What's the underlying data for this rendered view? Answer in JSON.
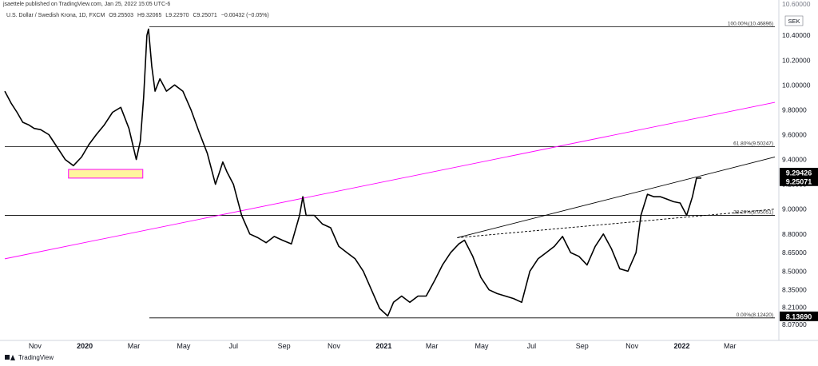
{
  "header": {
    "caption": "jsaettele published on TradingView.com, Jan 25, 2022 15:05 UTC-6",
    "symbol": "U.S. Dollar / Swedish Krona, 1D, FXCM",
    "ohlc": {
      "open": "O9.25503",
      "high": "H9.32065",
      "low": "L9.22970",
      "close": "C9.25071",
      "change": "−0.00432 (−0.05%)"
    }
  },
  "footer": {
    "logo_text": "TradingView",
    "logo_icon": "tradingview-logo-icon"
  },
  "colors": {
    "price": "#000000",
    "trendline": "#000000",
    "magenta_line": "#ff00ff",
    "box_fill": "#fff59d",
    "box_border": "#ff00ff",
    "fib_line": "#000000",
    "axis_text": "#131722"
  },
  "chart_data": {
    "type": "line",
    "title": "U.S. Dollar / Swedish Krona, 1D, FXCM",
    "currency": "SEK",
    "x_labels": [
      "Nov",
      "2020",
      "Mar",
      "May",
      "Jul",
      "Sep",
      "Nov",
      "2021",
      "Mar",
      "May",
      "Jul",
      "Sep",
      "Nov",
      "2022",
      "Mar"
    ],
    "bold_x_labels": [
      "2020",
      "2021",
      "2022"
    ],
    "x_dates": [
      "2019-11-01",
      "2020-01-01",
      "2020-03-01",
      "2020-05-01",
      "2020-07-01",
      "2020-09-01",
      "2020-11-01",
      "2021-01-01",
      "2021-03-01",
      "2021-05-01",
      "2021-07-01",
      "2021-09-01",
      "2021-11-01",
      "2022-01-01",
      "2022-03-01"
    ],
    "y_ticks": [
      "10.40000",
      "10.20000",
      "10.00000",
      "9.80000",
      "9.60000",
      "9.40000",
      "9.20000",
      "9.00000",
      "8.80000",
      "8.65000",
      "8.50000",
      "8.35000",
      "8.21000",
      "8.07000"
    ],
    "y_tick_values": [
      10.4,
      10.2,
      10.0,
      9.8,
      9.6,
      9.4,
      9.2,
      9.0,
      8.8,
      8.65,
      8.5,
      8.35,
      8.21,
      8.07
    ],
    "y_top_partial": "10.60000",
    "ylim": [
      8.02,
      10.62
    ],
    "xlim": [
      "2019-09-25",
      "2022-04-25"
    ],
    "price_labels": [
      {
        "value": 9.29426,
        "text": "9.29426"
      },
      {
        "value": 9.25071,
        "text": "9.25071"
      },
      {
        "value": 8.1369,
        "text": "8.13690"
      }
    ],
    "fib_levels": [
      {
        "text": "100.00%(10.46896)",
        "value": 10.46896
      },
      {
        "text": "61.80%(9.50247)",
        "value": 9.50247
      },
      {
        "text": "38.20%(8.95051)",
        "value": 8.95051
      },
      {
        "text": "0.00%(8.12420)",
        "value": 8.1242
      }
    ],
    "series": [
      {
        "x": [
          "2019-09-25",
          "2019-10-03",
          "2019-10-10",
          "2019-10-17",
          "2019-10-24",
          "2019-10-31",
          "2019-11-08",
          "2019-11-18",
          "2019-11-28",
          "2019-12-08",
          "2019-12-18",
          "2019-12-28",
          "2020-01-06",
          "2020-01-15",
          "2020-01-25",
          "2020-02-04",
          "2020-02-14",
          "2020-02-24",
          "2020-03-04",
          "2020-03-09",
          "2020-03-13",
          "2020-03-17",
          "2020-03-19",
          "2020-03-23",
          "2020-03-27",
          "2020-04-02",
          "2020-04-10",
          "2020-04-20",
          "2020-04-30",
          "2020-05-10",
          "2020-05-20",
          "2020-05-30",
          "2020-06-09",
          "2020-06-14",
          "2020-06-18",
          "2020-06-23",
          "2020-07-01",
          "2020-07-11",
          "2020-07-21",
          "2020-07-31",
          "2020-08-10",
          "2020-08-20",
          "2020-08-30",
          "2020-09-10",
          "2020-09-20",
          "2020-09-24",
          "2020-09-28",
          "2020-10-08",
          "2020-10-18",
          "2020-10-28",
          "2020-11-07",
          "2020-11-17",
          "2020-11-27",
          "2020-12-07",
          "2020-12-17",
          "2020-12-27",
          "2021-01-06",
          "2021-01-13",
          "2021-01-23",
          "2021-02-02",
          "2021-02-12",
          "2021-02-22",
          "2021-03-04",
          "2021-03-14",
          "2021-03-24",
          "2021-04-03",
          "2021-04-10",
          "2021-04-20",
          "2021-04-30",
          "2021-05-10",
          "2021-05-20",
          "2021-05-30",
          "2021-06-09",
          "2021-06-19",
          "2021-06-29",
          "2021-07-09",
          "2021-07-19",
          "2021-07-29",
          "2021-08-08",
          "2021-08-18",
          "2021-08-28",
          "2021-09-07",
          "2021-09-17",
          "2021-09-27",
          "2021-10-07",
          "2021-10-17",
          "2021-10-27",
          "2021-11-06",
          "2021-11-12",
          "2021-11-20",
          "2021-11-28",
          "2021-12-06",
          "2021-12-14",
          "2021-12-22",
          "2021-12-30",
          "2022-01-07",
          "2022-01-14",
          "2022-01-19",
          "2022-01-25"
        ],
        "y": [
          9.95,
          9.85,
          9.78,
          9.7,
          9.68,
          9.65,
          9.64,
          9.6,
          9.5,
          9.4,
          9.35,
          9.42,
          9.52,
          9.6,
          9.68,
          9.78,
          9.82,
          9.65,
          9.4,
          9.55,
          9.9,
          10.4,
          10.45,
          10.15,
          9.95,
          10.05,
          9.95,
          10.0,
          9.95,
          9.8,
          9.62,
          9.45,
          9.2,
          9.3,
          9.38,
          9.3,
          9.2,
          8.95,
          8.8,
          8.77,
          8.73,
          8.78,
          8.75,
          8.72,
          8.95,
          9.1,
          8.95,
          8.95,
          8.88,
          8.85,
          8.7,
          8.65,
          8.6,
          8.5,
          8.35,
          8.2,
          8.14,
          8.25,
          8.3,
          8.25,
          8.3,
          8.3,
          8.42,
          8.55,
          8.65,
          8.72,
          8.75,
          8.62,
          8.45,
          8.35,
          8.32,
          8.3,
          8.28,
          8.25,
          8.5,
          8.6,
          8.65,
          8.7,
          8.78,
          8.65,
          8.62,
          8.55,
          8.7,
          8.8,
          8.68,
          8.52,
          8.5,
          8.65,
          8.95,
          9.12,
          9.1,
          9.1,
          9.08,
          9.06,
          9.05,
          8.95,
          9.1,
          9.25,
          9.25071
        ]
      }
    ],
    "annotations": [
      {
        "type": "box",
        "x0": "2019-12-12",
        "x1": "2020-03-12",
        "y0": 9.25,
        "y1": 9.32
      },
      {
        "type": "trendline",
        "x0": "2019-09-25",
        "y0": 8.6,
        "x1": "2022-04-25",
        "y1": 9.86
      },
      {
        "type": "trendline",
        "x0": "2021-04-01",
        "y0": 8.77,
        "x1": "2022-04-25",
        "y1": 9.42
      },
      {
        "type": "dashed-trendline",
        "x0": "2021-04-01",
        "y0": 8.77,
        "x1": "2022-04-25",
        "y1": 9.0
      }
    ]
  }
}
